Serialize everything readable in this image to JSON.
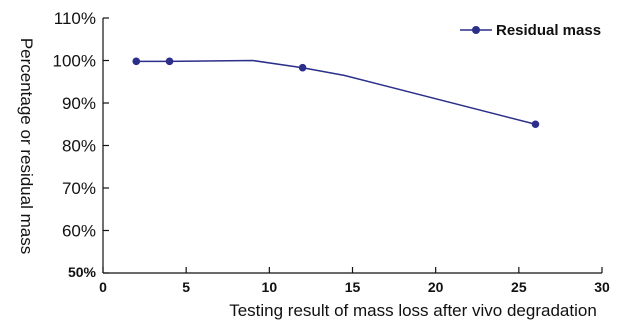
{
  "chart_data": {
    "type": "line",
    "xlabel": "Testing result of mass loss after vivo degradation",
    "ylabel": "Percentage or residual mass",
    "xlim": [
      0,
      30
    ],
    "ylim": [
      50,
      110
    ],
    "x_ticks": [
      "0",
      "5",
      "10",
      "15",
      "20",
      "25",
      "30"
    ],
    "y_ticks": [
      "110%",
      "100%",
      "90%",
      "80%",
      "70%",
      "60%",
      "50%"
    ],
    "grid": false,
    "legend_position": "top-right",
    "series": [
      {
        "name": "Residual mass",
        "color": "#2b2f8a",
        "line": [
          {
            "x": 2,
            "y": 99.8
          },
          {
            "x": 4,
            "y": 99.8
          },
          {
            "x": 9,
            "y": 100.0
          },
          {
            "x": 12,
            "y": 98.3
          },
          {
            "x": 14.5,
            "y": 96.5
          },
          {
            "x": 26,
            "y": 85.0
          }
        ],
        "markers": [
          {
            "x": 2,
            "y": 99.8
          },
          {
            "x": 4,
            "y": 99.8
          },
          {
            "x": 12,
            "y": 98.3
          },
          {
            "x": 26,
            "y": 85.0
          }
        ]
      }
    ]
  }
}
